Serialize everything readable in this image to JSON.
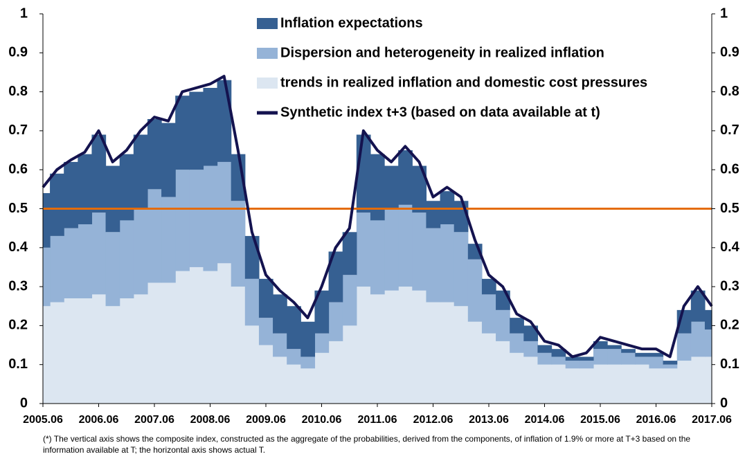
{
  "chart_data": {
    "type": "stacked-step-area",
    "categories": [
      "2005.06",
      null,
      null,
      null,
      "2006.06",
      null,
      null,
      null,
      "2007.06",
      null,
      null,
      null,
      "2008.06",
      null,
      null,
      null,
      "2009.06",
      null,
      null,
      null,
      "2010.06",
      null,
      null,
      null,
      "2011.06",
      null,
      null,
      null,
      "2012.06",
      null,
      null,
      null,
      "2013.06",
      null,
      null,
      null,
      "2014.06",
      null,
      null,
      null,
      "2015.06",
      null,
      null,
      null,
      "2016.06",
      null,
      null,
      null,
      "2017.06"
    ],
    "series": [
      {
        "name": "trends in realized inflation and domestic cost pressures",
        "color": "#dce6f1",
        "values": [
          0.25,
          0.26,
          0.27,
          0.27,
          0.28,
          0.25,
          0.27,
          0.28,
          0.31,
          0.31,
          0.34,
          0.35,
          0.34,
          0.36,
          0.3,
          0.2,
          0.15,
          0.12,
          0.1,
          0.09,
          0.13,
          0.16,
          0.2,
          0.3,
          0.28,
          0.29,
          0.3,
          0.29,
          0.26,
          0.26,
          0.25,
          0.21,
          0.18,
          0.16,
          0.13,
          0.12,
          0.1,
          0.1,
          0.09,
          0.09,
          0.1,
          0.1,
          0.1,
          0.1,
          0.09,
          0.09,
          0.11,
          0.12,
          0.12
        ]
      },
      {
        "name": "Dispersion and heterogeneity in realized inflation",
        "color": "#95b3d7",
        "values": [
          0.15,
          0.17,
          0.18,
          0.19,
          0.21,
          0.19,
          0.2,
          0.22,
          0.24,
          0.22,
          0.26,
          0.25,
          0.27,
          0.26,
          0.22,
          0.12,
          0.07,
          0.06,
          0.04,
          0.03,
          0.05,
          0.1,
          0.13,
          0.19,
          0.19,
          0.21,
          0.21,
          0.2,
          0.19,
          0.2,
          0.19,
          0.16,
          0.1,
          0.08,
          0.05,
          0.04,
          0.03,
          0.02,
          0.02,
          0.02,
          0.04,
          0.04,
          0.03,
          0.02,
          0.03,
          0.01,
          0.07,
          0.09,
          0.07
        ]
      },
      {
        "name": "Inflation expectations",
        "color": "#366092",
        "values": [
          0.14,
          0.16,
          0.17,
          0.18,
          0.2,
          0.17,
          0.17,
          0.19,
          0.18,
          0.19,
          0.19,
          0.2,
          0.2,
          0.21,
          0.12,
          0.11,
          0.1,
          0.1,
          0.11,
          0.09,
          0.11,
          0.13,
          0.11,
          0.2,
          0.17,
          0.11,
          0.14,
          0.12,
          0.07,
          0.085,
          0.08,
          0.04,
          0.04,
          0.05,
          0.04,
          0.04,
          0.02,
          0.02,
          0.01,
          0.01,
          0.02,
          0.01,
          0.01,
          0.01,
          0.01,
          0.01,
          0.06,
          0.08,
          0.05
        ]
      },
      {
        "name": "Synthetic index t+3 (based on data available at t)",
        "color": "#14134f",
        "line": true,
        "values": [
          0.555,
          0.6,
          0.625,
          0.645,
          0.7,
          0.62,
          0.65,
          0.7,
          0.735,
          0.725,
          0.8,
          0.81,
          0.82,
          0.84,
          0.65,
          0.44,
          0.33,
          0.29,
          0.26,
          0.22,
          0.3,
          0.4,
          0.45,
          0.7,
          0.65,
          0.62,
          0.66,
          0.62,
          0.53,
          0.555,
          0.53,
          0.42,
          0.33,
          0.3,
          0.23,
          0.21,
          0.16,
          0.15,
          0.12,
          0.13,
          0.17,
          0.16,
          0.15,
          0.14,
          0.14,
          0.12,
          0.25,
          0.3,
          0.25
        ]
      }
    ],
    "reference_line": {
      "value": 0.5,
      "color": "#e46c0a"
    },
    "ylim": [
      0,
      1
    ],
    "yticks": [
      0,
      0.1,
      0.2,
      0.3,
      0.4,
      0.5,
      0.6,
      0.7,
      0.8,
      0.9,
      1
    ],
    "y2lim": [
      0,
      1
    ],
    "y2ticks": [
      0,
      0.1,
      0.2,
      0.3,
      0.4,
      0.5,
      0.6,
      0.7,
      0.8,
      0.9,
      1
    ],
    "note": "(*) The vertical axis shows the composite index, constructed as the aggregate of the probabilities, derived from the components, of inflation of 1.9% or more at T+3 based on the information available at T; the horizontal axis shows actual T."
  }
}
